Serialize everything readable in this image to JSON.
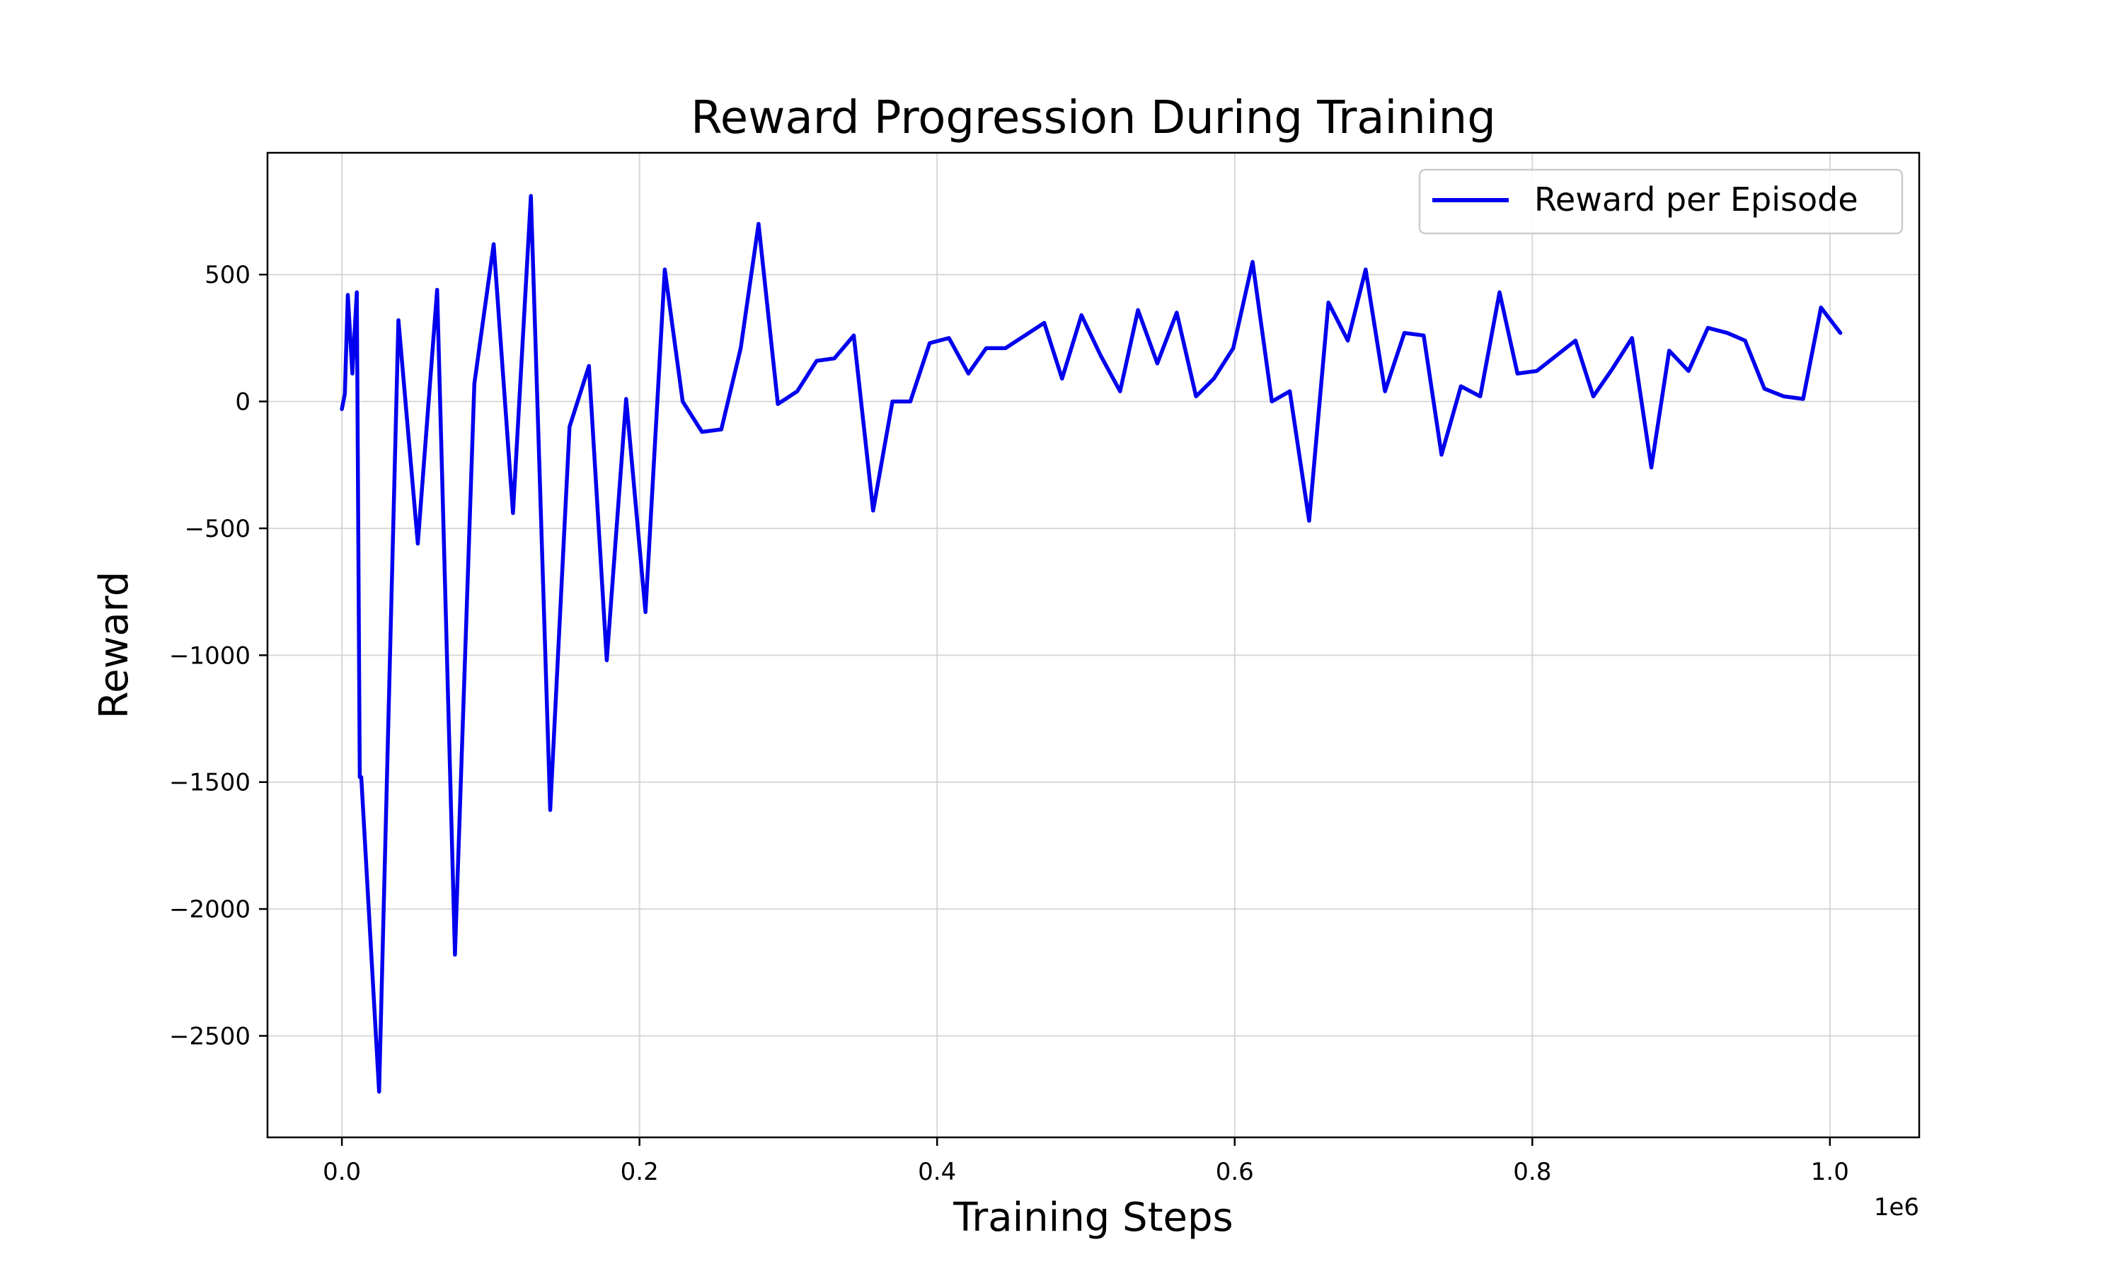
{
  "chart_data": {
    "type": "line",
    "title": "Reward Progression During Training",
    "xlabel": "Training Steps",
    "ylabel": "Reward",
    "x_offset_label": "1e6",
    "xlim": [
      -0.05,
      1.06
    ],
    "ylim": [
      -2900,
      980
    ],
    "x_ticks": [
      0.0,
      0.2,
      0.4,
      0.6,
      0.8,
      1.0
    ],
    "x_tick_labels": [
      "0.0",
      "0.2",
      "0.4",
      "0.6",
      "0.8",
      "1.0"
    ],
    "y_ticks": [
      500,
      0,
      -500,
      -1000,
      -1500,
      -2000,
      -2500
    ],
    "y_tick_labels": [
      "500",
      "0",
      "−500",
      "−1000",
      "−1500",
      "−2000",
      "−2500"
    ],
    "grid": true,
    "legend": {
      "position": "top-right"
    },
    "series": [
      {
        "name": "Reward per Episode",
        "color": "#0000ee",
        "x": [
          0.0,
          0.002,
          0.004,
          0.007,
          0.01,
          0.012,
          0.013,
          0.025,
          0.038,
          0.051,
          0.064,
          0.076,
          0.089,
          0.102,
          0.115,
          0.127,
          0.14,
          0.153,
          0.166,
          0.178,
          0.191,
          0.204,
          0.217,
          0.229,
          0.242,
          0.255,
          0.268,
          0.28,
          0.293,
          0.306,
          0.319,
          0.331,
          0.344,
          0.357,
          0.37,
          0.382,
          0.395,
          0.408,
          0.421,
          0.433,
          0.446,
          0.459,
          0.472,
          0.484,
          0.497,
          0.51,
          0.523,
          0.535,
          0.548,
          0.561,
          0.574,
          0.586,
          0.599,
          0.612,
          0.625,
          0.637,
          0.65,
          0.663,
          0.676,
          0.688,
          0.701,
          0.714,
          0.727,
          0.739,
          0.752,
          0.765,
          0.778,
          0.79,
          0.803,
          0.816,
          0.829,
          0.841,
          0.854,
          0.867,
          0.88,
          0.892,
          0.905,
          0.918,
          0.931,
          0.943,
          0.956,
          0.969,
          0.982,
          0.994,
          1.007
        ],
        "y": [
          -30,
          30,
          420,
          110,
          430,
          -1480,
          -1480,
          -2720,
          320,
          -560,
          440,
          -2180,
          70,
          620,
          -440,
          810,
          -1610,
          -100,
          140,
          -1020,
          10,
          -830,
          520,
          0,
          -120,
          -110,
          210,
          700,
          -10,
          40,
          160,
          170,
          260,
          -430,
          0,
          0,
          230,
          250,
          110,
          210,
          210,
          260,
          310,
          90,
          340,
          180,
          40,
          360,
          150,
          350,
          20,
          90,
          210,
          550,
          0,
          40,
          -470,
          390,
          240,
          520,
          40,
          270,
          260,
          -210,
          60,
          20,
          430,
          110,
          120,
          180,
          240,
          20,
          130,
          250,
          -260,
          200,
          120,
          290,
          270,
          240,
          50,
          20,
          10,
          370,
          270
        ]
      }
    ]
  }
}
